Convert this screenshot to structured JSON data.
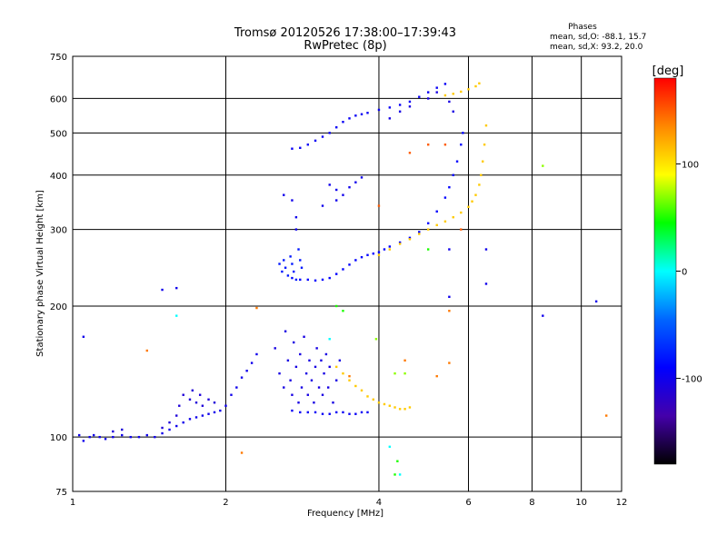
{
  "chart_data": {
    "type": "scatter",
    "title": "Tromsø 20120526 17:38:00–17:39:43",
    "subtitle": "RwPretec (8p)",
    "xlabel": "Frequency [MHz]",
    "ylabel": "Stationary phase Virtual Height [km]",
    "x_scale": "log",
    "y_scale": "log",
    "xlim": [
      1,
      12
    ],
    "ylim": [
      75,
      750
    ],
    "x_ticks": [
      1,
      2,
      4,
      6,
      8,
      10,
      12
    ],
    "x_tick_labels": [
      "1",
      "2",
      "4",
      "6",
      "8",
      "10",
      "12"
    ],
    "x_gridlines": [
      2,
      4,
      6,
      8,
      10
    ],
    "y_ticks": [
      75,
      100,
      200,
      300,
      400,
      500,
      600,
      750
    ],
    "y_tick_labels": [
      "75",
      "100",
      "200",
      "300",
      "400",
      "500",
      "600",
      "750"
    ],
    "y_gridlines": [
      100,
      200,
      300,
      400,
      500,
      600
    ],
    "grid": true,
    "stats": {
      "heading": "Phases",
      "line1": "mean, sd,O: -88.1, 15.7",
      "line2": "mean, sd,X:  93.2, 20.0"
    },
    "colorbar": {
      "label": "[deg]",
      "range": [
        -180,
        180
      ],
      "ticks": [
        100,
        0,
        -100
      ],
      "tick_labels": [
        "100",
        "0",
        "-100"
      ],
      "colors": [
        "#ff0000",
        "#ff8800",
        "#ffff00",
        "#00ff00",
        "#00ffff",
        "#0066ff",
        "#0000ff",
        "#4400aa",
        "#000000"
      ]
    },
    "traces": [
      {
        "phase": -100,
        "points": [
          [
            1.03,
            101
          ],
          [
            1.05,
            98
          ],
          [
            1.08,
            100
          ],
          [
            1.1,
            101
          ],
          [
            1.13,
            100
          ],
          [
            1.16,
            99
          ],
          [
            1.2,
            100
          ],
          [
            1.25,
            101
          ],
          [
            1.3,
            100
          ],
          [
            1.35,
            100
          ],
          [
            1.4,
            101
          ],
          [
            1.45,
            100
          ],
          [
            1.5,
            102
          ],
          [
            1.55,
            104
          ],
          [
            1.6,
            106
          ],
          [
            1.65,
            108
          ],
          [
            1.7,
            110
          ],
          [
            1.75,
            111
          ],
          [
            1.8,
            112
          ],
          [
            1.85,
            113
          ],
          [
            1.9,
            114
          ],
          [
            1.95,
            115
          ],
          [
            2.0,
            118
          ],
          [
            2.05,
            125
          ],
          [
            2.1,
            130
          ],
          [
            2.15,
            137
          ],
          [
            2.2,
            142
          ],
          [
            2.25,
            148
          ],
          [
            2.3,
            155
          ]
        ]
      },
      {
        "phase": -90,
        "points": [
          [
            2.7,
            232
          ],
          [
            2.8,
            230
          ],
          [
            2.9,
            230
          ],
          [
            3.0,
            229
          ],
          [
            3.1,
            230
          ],
          [
            3.2,
            232
          ],
          [
            3.3,
            237
          ],
          [
            3.4,
            243
          ],
          [
            3.5,
            249
          ],
          [
            3.6,
            255
          ],
          [
            3.7,
            259
          ],
          [
            3.8,
            262
          ],
          [
            3.9,
            264
          ],
          [
            4.0,
            266
          ],
          [
            4.1,
            270
          ],
          [
            4.2,
            274
          ],
          [
            4.4,
            280
          ],
          [
            4.6,
            287
          ],
          [
            4.8,
            296
          ],
          [
            5.0,
            310
          ],
          [
            5.2,
            330
          ],
          [
            5.4,
            355
          ],
          [
            5.5,
            375
          ],
          [
            5.6,
            400
          ],
          [
            5.7,
            430
          ],
          [
            5.8,
            470
          ],
          [
            5.85,
            500
          ]
        ]
      },
      {
        "phase": -95,
        "points": [
          [
            2.7,
            460
          ],
          [
            2.8,
            462
          ],
          [
            2.9,
            470
          ],
          [
            3.0,
            480
          ],
          [
            3.1,
            490
          ],
          [
            3.2,
            500
          ],
          [
            3.3,
            515
          ],
          [
            3.4,
            530
          ],
          [
            3.5,
            540
          ],
          [
            3.6,
            548
          ],
          [
            3.7,
            552
          ],
          [
            3.8,
            556
          ],
          [
            4.0,
            565
          ],
          [
            4.2,
            572
          ],
          [
            4.4,
            580
          ],
          [
            4.6,
            590
          ],
          [
            4.8,
            605
          ],
          [
            5.0,
            620
          ],
          [
            5.2,
            635
          ],
          [
            5.4,
            648
          ]
        ]
      },
      {
        "phase": 110,
        "points": [
          [
            4.0,
            262
          ],
          [
            4.2,
            270
          ],
          [
            4.4,
            278
          ],
          [
            4.6,
            285
          ],
          [
            4.8,
            293
          ],
          [
            5.0,
            300
          ],
          [
            5.2,
            307
          ],
          [
            5.4,
            313
          ],
          [
            5.6,
            320
          ],
          [
            5.8,
            328
          ],
          [
            6.0,
            338
          ],
          [
            6.1,
            348
          ],
          [
            6.2,
            360
          ],
          [
            6.3,
            380
          ],
          [
            6.35,
            400
          ],
          [
            6.4,
            430
          ],
          [
            6.45,
            470
          ],
          [
            6.5,
            520
          ]
        ]
      },
      {
        "phase": 110,
        "points": [
          [
            5.4,
            610
          ],
          [
            5.6,
            615
          ],
          [
            5.8,
            622
          ],
          [
            6.0,
            630
          ],
          [
            6.2,
            640
          ],
          [
            6.3,
            650
          ]
        ]
      },
      {
        "phase": 110,
        "points": [
          [
            3.3,
            145
          ],
          [
            3.4,
            140
          ],
          [
            3.5,
            135
          ],
          [
            3.6,
            131
          ],
          [
            3.7,
            128
          ],
          [
            3.8,
            124
          ],
          [
            3.9,
            122
          ],
          [
            4.0,
            120
          ],
          [
            4.1,
            119
          ],
          [
            4.2,
            118
          ],
          [
            4.3,
            117
          ],
          [
            4.4,
            116
          ],
          [
            4.5,
            116
          ],
          [
            4.6,
            117
          ]
        ]
      },
      {
        "phase": -95,
        "points": [
          [
            2.7,
            115
          ],
          [
            2.8,
            114
          ],
          [
            2.9,
            114
          ],
          [
            3.0,
            114
          ],
          [
            3.1,
            113
          ],
          [
            3.2,
            113
          ],
          [
            3.3,
            114
          ],
          [
            3.4,
            114
          ],
          [
            3.5,
            113
          ],
          [
            3.6,
            113
          ],
          [
            3.7,
            114
          ],
          [
            3.8,
            114
          ]
        ]
      },
      {
        "phase": -105,
        "points": [
          [
            2.5,
            160
          ],
          [
            2.55,
            140
          ],
          [
            2.6,
            130
          ],
          [
            2.62,
            175
          ],
          [
            2.65,
            150
          ],
          [
            2.68,
            135
          ],
          [
            2.7,
            125
          ],
          [
            2.72,
            165
          ],
          [
            2.75,
            145
          ],
          [
            2.78,
            120
          ],
          [
            2.8,
            155
          ],
          [
            2.82,
            130
          ],
          [
            2.85,
            170
          ],
          [
            2.88,
            140
          ],
          [
            2.9,
            125
          ],
          [
            2.92,
            150
          ],
          [
            2.95,
            135
          ],
          [
            2.98,
            120
          ],
          [
            3.0,
            145
          ],
          [
            3.02,
            160
          ],
          [
            3.05,
            130
          ],
          [
            3.08,
            150
          ],
          [
            3.1,
            125
          ],
          [
            3.12,
            140
          ],
          [
            3.15,
            155
          ],
          [
            3.18,
            130
          ],
          [
            3.2,
            145
          ],
          [
            3.25,
            120
          ],
          [
            3.3,
            135
          ],
          [
            3.35,
            150
          ]
        ]
      },
      {
        "phase": -80,
        "points": [
          [
            2.55,
            250
          ],
          [
            2.58,
            240
          ],
          [
            2.6,
            255
          ],
          [
            2.62,
            245
          ],
          [
            2.65,
            235
          ],
          [
            2.68,
            260
          ],
          [
            2.7,
            250
          ],
          [
            2.72,
            240
          ],
          [
            2.75,
            230
          ],
          [
            2.78,
            270
          ],
          [
            2.8,
            255
          ],
          [
            2.82,
            245
          ]
        ]
      },
      {
        "phase": -100,
        "points": [
          [
            3.2,
            380
          ],
          [
            3.3,
            370
          ],
          [
            3.4,
            360
          ],
          [
            3.5,
            375
          ],
          [
            3.6,
            385
          ],
          [
            3.7,
            395
          ],
          [
            3.1,
            340
          ],
          [
            3.3,
            350
          ],
          [
            2.6,
            360
          ],
          [
            2.7,
            350
          ],
          [
            2.75,
            320
          ],
          [
            2.75,
            300
          ]
        ]
      },
      {
        "phase": -110,
        "points": [
          [
            1.6,
            112
          ],
          [
            1.62,
            118
          ],
          [
            1.65,
            125
          ],
          [
            1.7,
            122
          ],
          [
            1.72,
            128
          ],
          [
            1.75,
            120
          ],
          [
            1.78,
            125
          ],
          [
            1.8,
            118
          ],
          [
            1.85,
            122
          ],
          [
            1.9,
            120
          ],
          [
            1.5,
            105
          ],
          [
            1.55,
            108
          ],
          [
            1.2,
            103
          ],
          [
            1.25,
            104
          ]
        ]
      },
      {
        "phase": -105,
        "points": [
          [
            4.2,
            540
          ],
          [
            4.4,
            560
          ],
          [
            4.6,
            575
          ],
          [
            5.0,
            600
          ],
          [
            5.2,
            620
          ],
          [
            5.5,
            590
          ],
          [
            5.6,
            560
          ]
        ]
      },
      {
        "phase": 150,
        "points": [
          [
            4.6,
            450
          ],
          [
            5.0,
            470
          ],
          [
            5.4,
            470
          ],
          [
            4.0,
            340
          ],
          [
            5.8,
            300
          ]
        ]
      },
      {
        "phase": -100,
        "points": [
          [
            5.5,
            210
          ],
          [
            5.5,
            270
          ],
          [
            6.5,
            225
          ],
          [
            6.5,
            270
          ],
          [
            8.4,
            190
          ],
          [
            10.7,
            205
          ],
          [
            1.5,
            218
          ],
          [
            1.6,
            220
          ],
          [
            1.05,
            170
          ]
        ]
      },
      {
        "phase": 70,
        "points": [
          [
            8.4,
            420
          ],
          [
            4.5,
            140
          ],
          [
            4.3,
            140
          ],
          [
            3.95,
            168
          ]
        ]
      },
      {
        "phase": 140,
        "points": [
          [
            2.15,
            92
          ],
          [
            1.4,
            158
          ],
          [
            3.5,
            138
          ],
          [
            5.2,
            138
          ],
          [
            5.5,
            195
          ],
          [
            5.5,
            148
          ],
          [
            11.2,
            112
          ],
          [
            4.5,
            150
          ],
          [
            2.3,
            198
          ]
        ]
      },
      {
        "phase": 50,
        "points": [
          [
            4.3,
            82
          ],
          [
            4.35,
            88
          ],
          [
            3.3,
            200
          ],
          [
            3.4,
            195
          ],
          [
            5.0,
            270
          ]
        ]
      },
      {
        "phase": 0,
        "points": [
          [
            4.4,
            82
          ],
          [
            3.2,
            168
          ],
          [
            1.6,
            190
          ],
          [
            4.2,
            95
          ]
        ]
      }
    ]
  }
}
